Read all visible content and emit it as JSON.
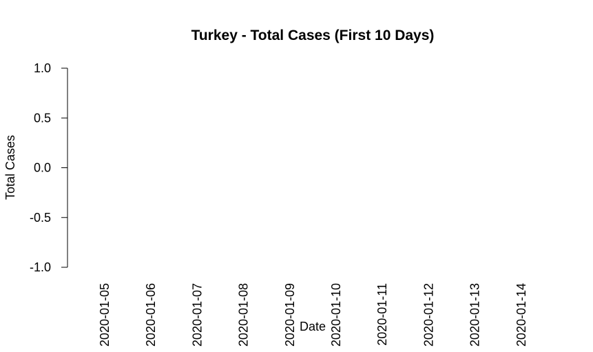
{
  "chart_data": {
    "type": "bar",
    "title": "Turkey - Total Cases (First 10 Days)",
    "xlabel": "Date",
    "ylabel": "Total Cases",
    "categories": [
      "2020-01-05",
      "2020-01-06",
      "2020-01-07",
      "2020-01-08",
      "2020-01-09",
      "2020-01-10",
      "2020-01-11",
      "2020-01-12",
      "2020-01-13",
      "2020-01-14"
    ],
    "values": [
      0,
      0,
      0,
      0,
      0,
      0,
      0,
      0,
      0,
      0
    ],
    "ylim": [
      -1.0,
      1.0
    ],
    "yticks": [
      "-1.0",
      "-0.5",
      "0.0",
      "0.5",
      "1.0"
    ],
    "grid": false,
    "bar_color": "#000000"
  }
}
